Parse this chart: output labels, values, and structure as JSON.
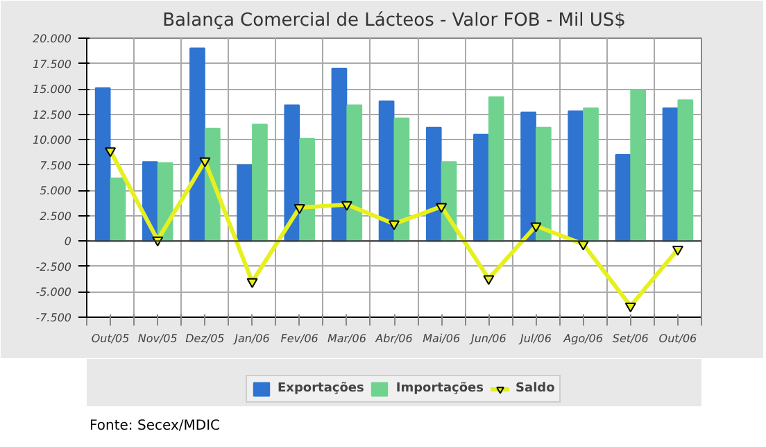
{
  "chart_data": {
    "type": "bar",
    "title": "Balança Comercial de Lácteos - Valor FOB - Mil US$",
    "categories": [
      "Out/05",
      "Nov/05",
      "Dez/05",
      "Jan/06",
      "Fev/06",
      "Mar/06",
      "Abr/06",
      "Mai/06",
      "Jun/06",
      "Jul/06",
      "Ago/06",
      "Set/06",
      "Out/06"
    ],
    "series": [
      {
        "name": "Exportações",
        "color": "#2f74d0",
        "values": [
          15100,
          7800,
          19000,
          7500,
          13400,
          17000,
          13800,
          11200,
          10500,
          12700,
          12800,
          8500,
          13100
        ]
      },
      {
        "name": "Importações",
        "color": "#6fd38f",
        "values": [
          6200,
          7700,
          11100,
          11500,
          10100,
          13400,
          12100,
          7800,
          14200,
          11200,
          13100,
          14900,
          13900
        ]
      },
      {
        "name": "Saldo",
        "type": "line",
        "color": "#e6f01e",
        "marker": "triangle",
        "values": [
          8900,
          100,
          7900,
          -4000,
          3300,
          3600,
          1700,
          3400,
          -3700,
          1500,
          -300,
          -6400,
          -800
        ]
      }
    ],
    "ylim": [
      -7500,
      20000
    ],
    "yticks": [
      {
        "value": -7500,
        "label": "-7.500"
      },
      {
        "value": -5000,
        "label": "-5.000"
      },
      {
        "value": -2500,
        "label": "-2.500"
      },
      0,
      {
        "value": 2500,
        "label": "2.500"
      },
      {
        "value": 5000,
        "label": "5.000"
      },
      {
        "value": 7500,
        "label": "7.500"
      },
      {
        "value": 10000,
        "label": "10.000"
      },
      {
        "value": 12500,
        "label": "12.500"
      },
      {
        "value": 15000,
        "label": "15.000"
      },
      {
        "value": 17500,
        "label": "17.500"
      },
      {
        "value": 20000,
        "label": "20.000"
      }
    ],
    "grid": true,
    "legend": "bottom",
    "annotations": [
      "Fonte: Secex/MDIC"
    ]
  }
}
